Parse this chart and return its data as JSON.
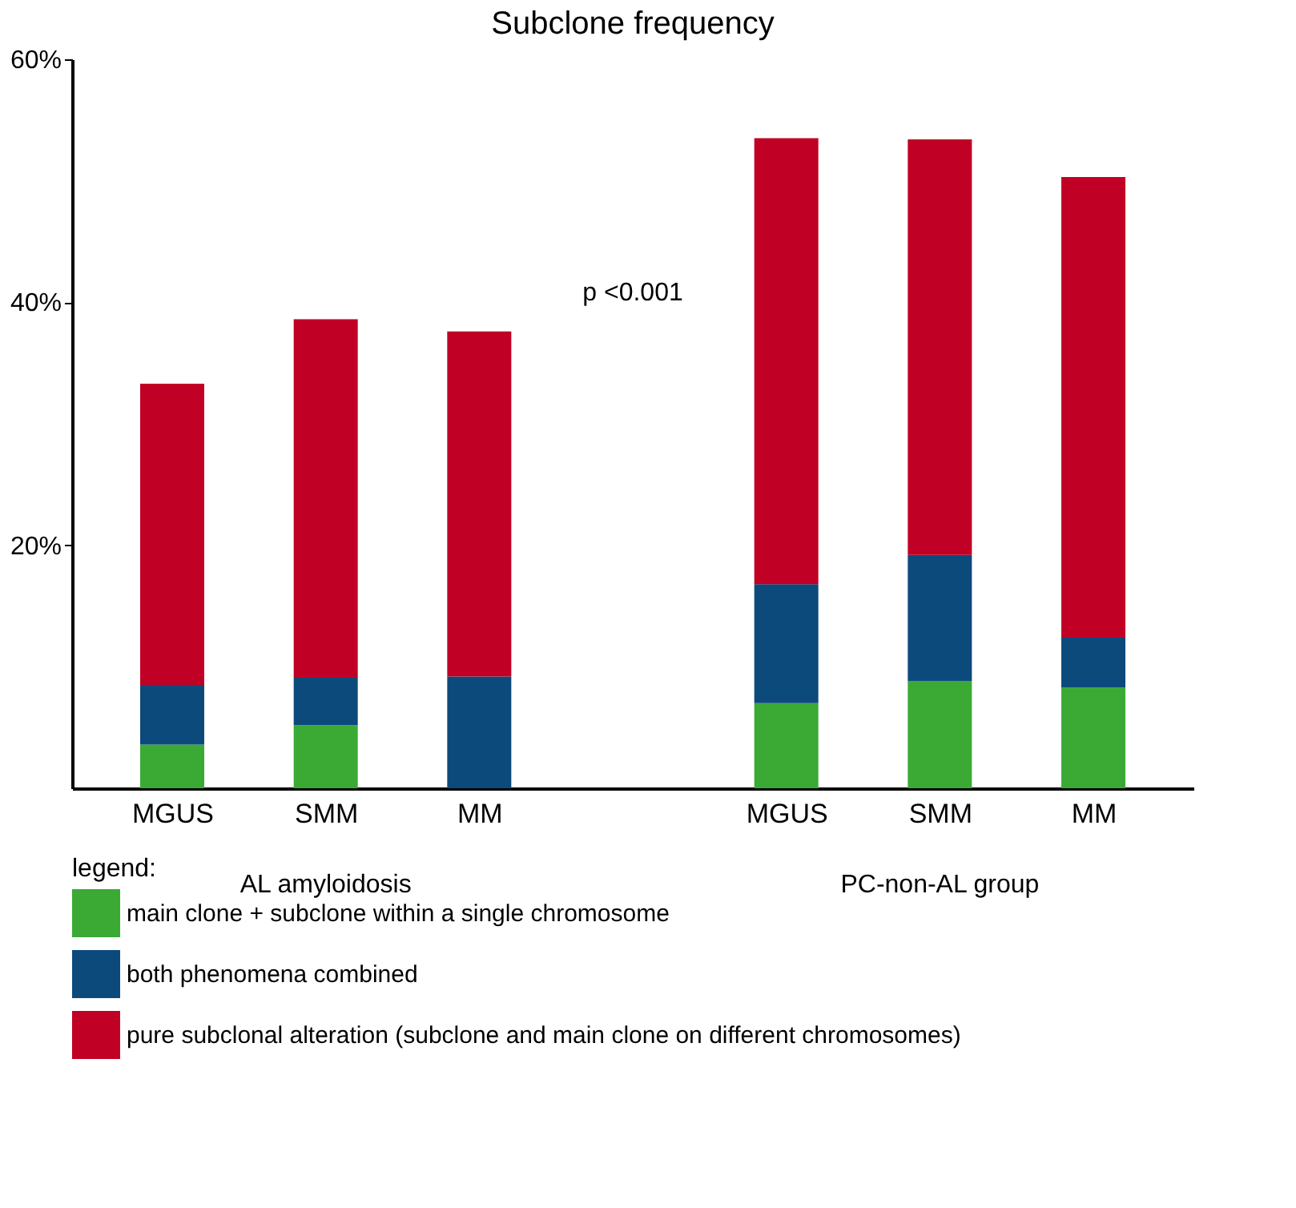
{
  "chart_data": {
    "type": "bar",
    "title": "Subclone frequency",
    "stacked": true,
    "categories": [
      "MGUS",
      "SMM",
      "MM",
      null,
      "MGUS",
      "SMM",
      "MM"
    ],
    "series": [
      {
        "name": "main clone + subclone within a single chromosome",
        "color": "#3aaa35",
        "values": [
          3.6,
          5.2,
          0,
          null,
          7.0,
          8.8,
          8.3
        ]
      },
      {
        "name": "both phenomena combined",
        "color": "#0d4a7c",
        "values": [
          4.9,
          3.9,
          9.2,
          null,
          9.8,
          10.4,
          4.1
        ]
      },
      {
        "name": "pure subclonal alteration (subclone and main clone on different chromosomes)",
        "color": "#c10025",
        "values": [
          24.8,
          29.5,
          28.4,
          null,
          36.7,
          34.2,
          37.9
        ]
      }
    ],
    "ylim": [
      0,
      60
    ],
    "yticks": [
      {
        "value": 20,
        "label": "20%"
      },
      {
        "value": 40,
        "label": "40%"
      },
      {
        "value": 60,
        "label": "60%"
      }
    ],
    "grid": false,
    "legend": "bottom",
    "legend_title": "legend:",
    "annotations": [
      "p <0.001",
      "AL amyloidosis",
      "PC-non-AL group"
    ]
  }
}
